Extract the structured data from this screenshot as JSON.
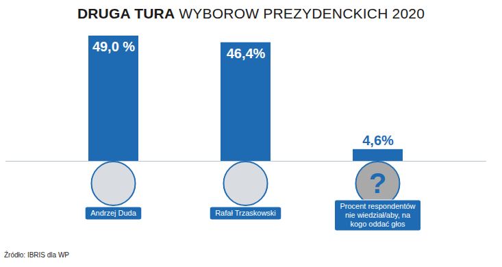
{
  "chart_data": {
    "type": "bar",
    "title": "DRUGA TURA WYBOROW PREZYDENCKICH 2020",
    "categories": [
      "Andrzej Duda",
      "Rafał Trzaskowski",
      "Procent respondentów nie wiedział/aby, na kogo oddać głos"
    ],
    "values": [
      49.0,
      46.4,
      4.6
    ],
    "value_labels": [
      "49,0 %",
      "46,4%",
      "4,6%"
    ],
    "color": "#1f6bb3",
    "ylim": [
      0,
      49
    ],
    "data_labels": true,
    "tick_labels": false,
    "grid": false,
    "source": "Źródło: IBRIS dla WP",
    "annotations": [
      "?"
    ]
  }
}
